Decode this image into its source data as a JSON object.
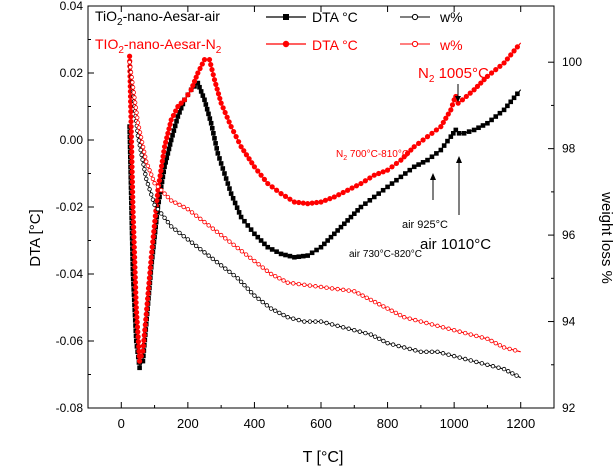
{
  "chart_data": {
    "type": "line",
    "xlabel": "T  [°C]",
    "ylabel_left": "DTA  [°C]",
    "ylabel_right": "weight loss  %",
    "x_ticks": [
      0,
      200,
      400,
      600,
      800,
      1000,
      1200
    ],
    "y_left_ticks": [
      "-0.08",
      "-0.06",
      "-0.04",
      "-0.02",
      "0.00",
      "0.02",
      "0.04"
    ],
    "y_right_ticks": [
      "92",
      "94",
      "96",
      "98",
      "100"
    ],
    "xlim": [
      -100,
      1300
    ],
    "ylim_left": [
      -0.08,
      0.04
    ],
    "ylim_right": [
      92,
      101.3
    ],
    "colors": {
      "air": "#000000",
      "n2": "#ff0000"
    },
    "legend": [
      {
        "group": "TiO",
        "sub": "2",
        "rest": "-nano-Aesar-air",
        "dta": "DTA  °C",
        "w": "w%",
        "color": "#000000"
      },
      {
        "group": "TIO",
        "sub": "2",
        "rest": "-nano-Aesar-N",
        "sub2": "2",
        "dta": "DTA  °C",
        "w": "w%",
        "color": "#ff0000"
      }
    ],
    "series": [
      {
        "name": "TiO2-nano-Aesar-air DTA °C",
        "axis": "left",
        "color": "#000000",
        "marker": "filled-square",
        "x": [
          25,
          35,
          45,
          55,
          65,
          75,
          90,
          110,
          130,
          150,
          170,
          190,
          210,
          230,
          250,
          270,
          290,
          310,
          330,
          360,
          400,
          440,
          480,
          520,
          560,
          600,
          640,
          680,
          720,
          760,
          800,
          840,
          880,
          920,
          960,
          990,
          1005,
          1015,
          1030,
          1060,
          1100,
          1150,
          1200
        ],
        "y": [
          0.004,
          -0.04,
          -0.06,
          -0.068,
          -0.066,
          -0.055,
          -0.038,
          -0.02,
          -0.008,
          0.0,
          0.007,
          0.012,
          0.015,
          0.017,
          0.012,
          0.005,
          -0.004,
          -0.01,
          -0.016,
          -0.023,
          -0.028,
          -0.032,
          -0.034,
          -0.035,
          -0.0345,
          -0.032,
          -0.028,
          -0.024,
          -0.02,
          -0.017,
          -0.014,
          -0.011,
          -0.008,
          -0.006,
          -0.003,
          0.001,
          0.003,
          0.002,
          0.002,
          0.003,
          0.005,
          0.009,
          0.015
        ]
      },
      {
        "name": "TiO2-nano-Aesar-N2 DTA °C",
        "axis": "left",
        "color": "#ff0000",
        "marker": "filled-circle",
        "x": [
          25,
          35,
          45,
          55,
          65,
          75,
          90,
          110,
          130,
          150,
          170,
          190,
          210,
          230,
          250,
          265,
          280,
          300,
          330,
          360,
          400,
          440,
          480,
          520,
          560,
          600,
          640,
          680,
          720,
          760,
          800,
          840,
          880,
          920,
          960,
          990,
          1000,
          1005,
          1012,
          1025,
          1060,
          1100,
          1150,
          1200
        ],
        "y": [
          0.025,
          -0.02,
          -0.05,
          -0.066,
          -0.063,
          -0.052,
          -0.035,
          -0.015,
          -0.002,
          0.006,
          0.01,
          0.012,
          0.015,
          0.02,
          0.024,
          0.024,
          0.018,
          0.011,
          0.004,
          -0.002,
          -0.008,
          -0.013,
          -0.016,
          -0.0185,
          -0.019,
          -0.0185,
          -0.017,
          -0.015,
          -0.013,
          -0.0105,
          -0.009,
          -0.006,
          -0.002,
          0.001,
          0.004,
          0.009,
          0.012,
          0.013,
          0.011,
          0.012,
          0.015,
          0.019,
          0.023,
          0.029
        ]
      },
      {
        "name": "TiO2-nano-Aesar-air w%",
        "axis": "right",
        "color": "#000000",
        "marker": "open-circle",
        "x": [
          25,
          50,
          75,
          100,
          150,
          200,
          250,
          300,
          350,
          400,
          450,
          500,
          550,
          600,
          650,
          700,
          750,
          800,
          850,
          900,
          950,
          1000,
          1050,
          1100,
          1150,
          1200
        ],
        "y": [
          100.0,
          98.3,
          97.3,
          96.7,
          96.2,
          95.9,
          95.6,
          95.3,
          95.0,
          94.6,
          94.3,
          94.1,
          94.0,
          94.0,
          93.9,
          93.8,
          93.7,
          93.5,
          93.4,
          93.3,
          93.3,
          93.2,
          93.1,
          93.0,
          92.9,
          92.7
        ]
      },
      {
        "name": "TiO2-nano-Aesar-N2 w%",
        "axis": "right",
        "color": "#ff0000",
        "marker": "open-circle",
        "x": [
          25,
          50,
          75,
          100,
          150,
          200,
          250,
          300,
          350,
          400,
          450,
          500,
          550,
          600,
          650,
          700,
          750,
          800,
          850,
          900,
          950,
          1000,
          1050,
          1100,
          1150,
          1200
        ],
        "y": [
          100.0,
          98.6,
          97.7,
          97.2,
          96.8,
          96.6,
          96.3,
          96.0,
          95.7,
          95.4,
          95.1,
          94.9,
          94.85,
          94.8,
          94.75,
          94.7,
          94.5,
          94.3,
          94.1,
          94.0,
          93.9,
          93.8,
          93.7,
          93.6,
          93.4,
          93.3
        ]
      }
    ],
    "annotations": [
      {
        "text": "N",
        "sub": "2",
        "rest": " 1005°C",
        "color": "#ff0000",
        "size": "large"
      },
      {
        "text": "N",
        "sub": "2",
        "rest": " 700°C-810°C",
        "color": "#ff0000",
        "size": "small"
      },
      {
        "text": "air 925°C",
        "color": "#000000",
        "size": "small"
      },
      {
        "text": "air 730°C-820°C",
        "color": "#000000",
        "size": "small"
      },
      {
        "text": "air 1010°C",
        "color": "#000000",
        "size": "large"
      }
    ]
  }
}
